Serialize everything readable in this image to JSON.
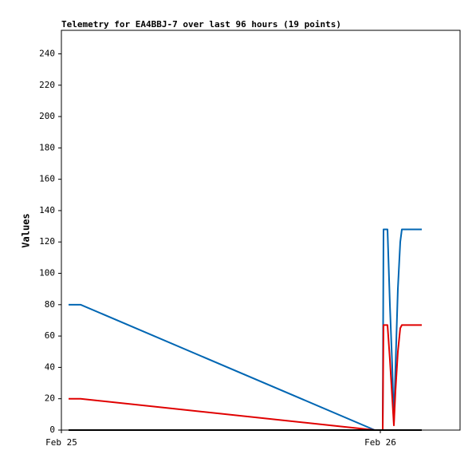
{
  "chart_data": {
    "type": "line",
    "title": "Telemetry for EA4BBJ-7 over last 96 hours (19 points)",
    "y_label": "Values",
    "x": [
      0.54,
      1.44,
      23.58,
      24.18,
      24.24,
      24.54,
      24.72,
      24.9,
      25.02,
      25.14,
      25.32,
      25.5,
      25.62,
      25.8,
      26.1,
      26.4,
      26.7,
      26.94,
      27.12
    ],
    "series": [
      {
        "color": "#0066b3",
        "values": [
          80,
          80,
          0,
          0,
          128,
          128,
          80,
          40,
          5,
          40,
          90,
          120,
          128,
          128,
          128,
          128,
          128,
          128,
          128
        ]
      },
      {
        "color": "#e00000",
        "values": [
          20,
          20,
          0,
          0,
          67,
          67,
          45,
          20,
          3,
          25,
          50,
          65,
          67,
          67,
          67,
          67,
          67,
          67,
          67
        ]
      },
      {
        "color": "#000000",
        "values": [
          0,
          0,
          0,
          0,
          0,
          0,
          0,
          0,
          0,
          0,
          0,
          0,
          0,
          0,
          0,
          0,
          0,
          0,
          0
        ]
      }
    ],
    "xlim": [
      0,
      30
    ],
    "xticks": [
      {
        "value": 0,
        "label": "Feb 25"
      },
      {
        "value": 24,
        "label": "Feb 26"
      }
    ],
    "ylim": [
      0,
      255
    ],
    "yticks": [
      0,
      20,
      40,
      60,
      80,
      100,
      120,
      140,
      160,
      180,
      200,
      220,
      240
    ],
    "grid": false
  }
}
